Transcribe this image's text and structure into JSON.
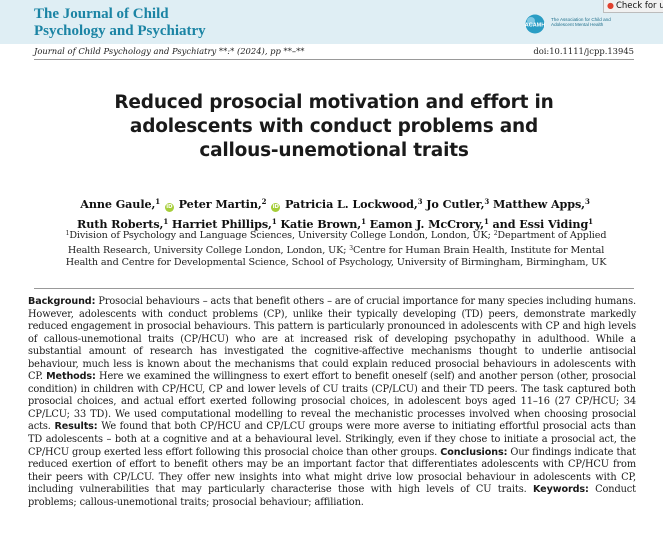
{
  "header": {
    "journal_name_line1": "The Journal of Child",
    "journal_name_line2": "Psychology and Psychiatry",
    "acamh_logo": "ACAMH",
    "acamh_text": "The Association for Child and Adolescent Mental Health",
    "check_tab_label": "Check for up",
    "check_icon": "crossmark-icon",
    "colors": {
      "band": "#dfeef4",
      "journal_title": "#1b84a4",
      "orcid": "#a6ce39"
    }
  },
  "citation": "Journal of Child Psychology and Psychiatry **:* (2024), pp **–**",
  "doi": "doi:10.1111/jcpp.13945",
  "title_lines": [
    "Reduced prosocial motivation and effort in",
    "adolescents with conduct problems and",
    "callous-unemotional traits"
  ],
  "authors": {
    "line1": [
      {
        "name": "Anne Gaule,",
        "sup": "1",
        "orcid": true
      },
      {
        "name": "Peter Martin,",
        "sup": "2",
        "orcid": true
      },
      {
        "name": "Patricia L. Lockwood,",
        "sup": "3",
        "orcid": false
      },
      {
        "name": "Jo Cutler,",
        "sup": "3",
        "orcid": false
      },
      {
        "name": "Matthew Apps,",
        "sup": "3",
        "orcid": false
      }
    ],
    "line2": [
      {
        "name": "Ruth Roberts,",
        "sup": "1"
      },
      {
        "name": "Harriet Phillips,",
        "sup": "1"
      },
      {
        "name": "Katie Brown,",
        "sup": "1"
      },
      {
        "name": "Eamon J. McCrory,",
        "sup": "1"
      },
      {
        "name": "and Essi Viding",
        "sup": "1"
      }
    ],
    "orcid_label": "iD"
  },
  "affiliations": {
    "line1_sup": "1",
    "line1_text": "Division of Psychology and Language Sciences, University College London, London, UK; ",
    "line1_sup2": "2",
    "line1_text2": "Department of Applied",
    "line2_text": "Health Research, University College London, London, UK; ",
    "line2_sup": "3",
    "line2_text2": "Centre for Human Brain Health, Institute for Mental",
    "line3_text": "Health and Centre for Developmental Science, School of Psychology, University of Birmingham, Birmingham, UK"
  },
  "abstract": {
    "background_label": "Background:",
    "background_text": " Prosocial behaviours – acts that benefit others – are of crucial importance for many species including humans. However, adolescents with conduct problems (CP), unlike their typically developing (TD) peers, demonstrate markedly reduced engagement in prosocial behaviours. This pattern is particularly pronounced in adolescents with CP and high levels of callous-unemotional traits (CP/HCU) who are at increased risk of developing psychopathy in adulthood. While a substantial amount of research has investigated the cognitive-affective mechanisms thought to underlie antisocial behaviour, much less is known about the mechanisms that could explain reduced prosocial behaviours in adolescents with CP. ",
    "methods_label": "Methods:",
    "methods_text": " Here we examined the willingness to exert effort to benefit oneself (self) and another person (other, prosocial condition) in children with CP/HCU, CP and lower levels of CU traits (CP/LCU) and their TD peers. The task captured both prosocial choices, and actual effort exerted following prosocial choices, in adolescent boys aged 11–16 (27 CP/HCU; 34 CP/LCU; 33 TD). We used computational modelling to reveal the mechanistic processes involved when choosing prosocial acts. ",
    "results_label": "Results:",
    "results_text": " We found that both CP/HCU and CP/LCU groups were more averse to initiating effortful prosocial acts than TD adolescents – both at a cognitive and at a behavioural level. Strikingly, even if they chose to initiate a prosocial act, the CP/HCU group exerted less effort following this prosocial choice than other groups. ",
    "conclusions_label": "Conclusions:",
    "conclusions_text": " Our findings indicate that reduced exertion of effort to benefit others may be an important factor that differentiates adolescents with CP/HCU from their peers with CP/LCU. They offer new insights into what might drive low prosocial behaviour in adolescents with CP, including vulnerabilities that may particularly characterise those with high levels of CU traits. ",
    "keywords_label": "Keywords:",
    "keywords_text": " Conduct problems; callous-unemotional traits; prosocial behaviour; affiliation."
  }
}
